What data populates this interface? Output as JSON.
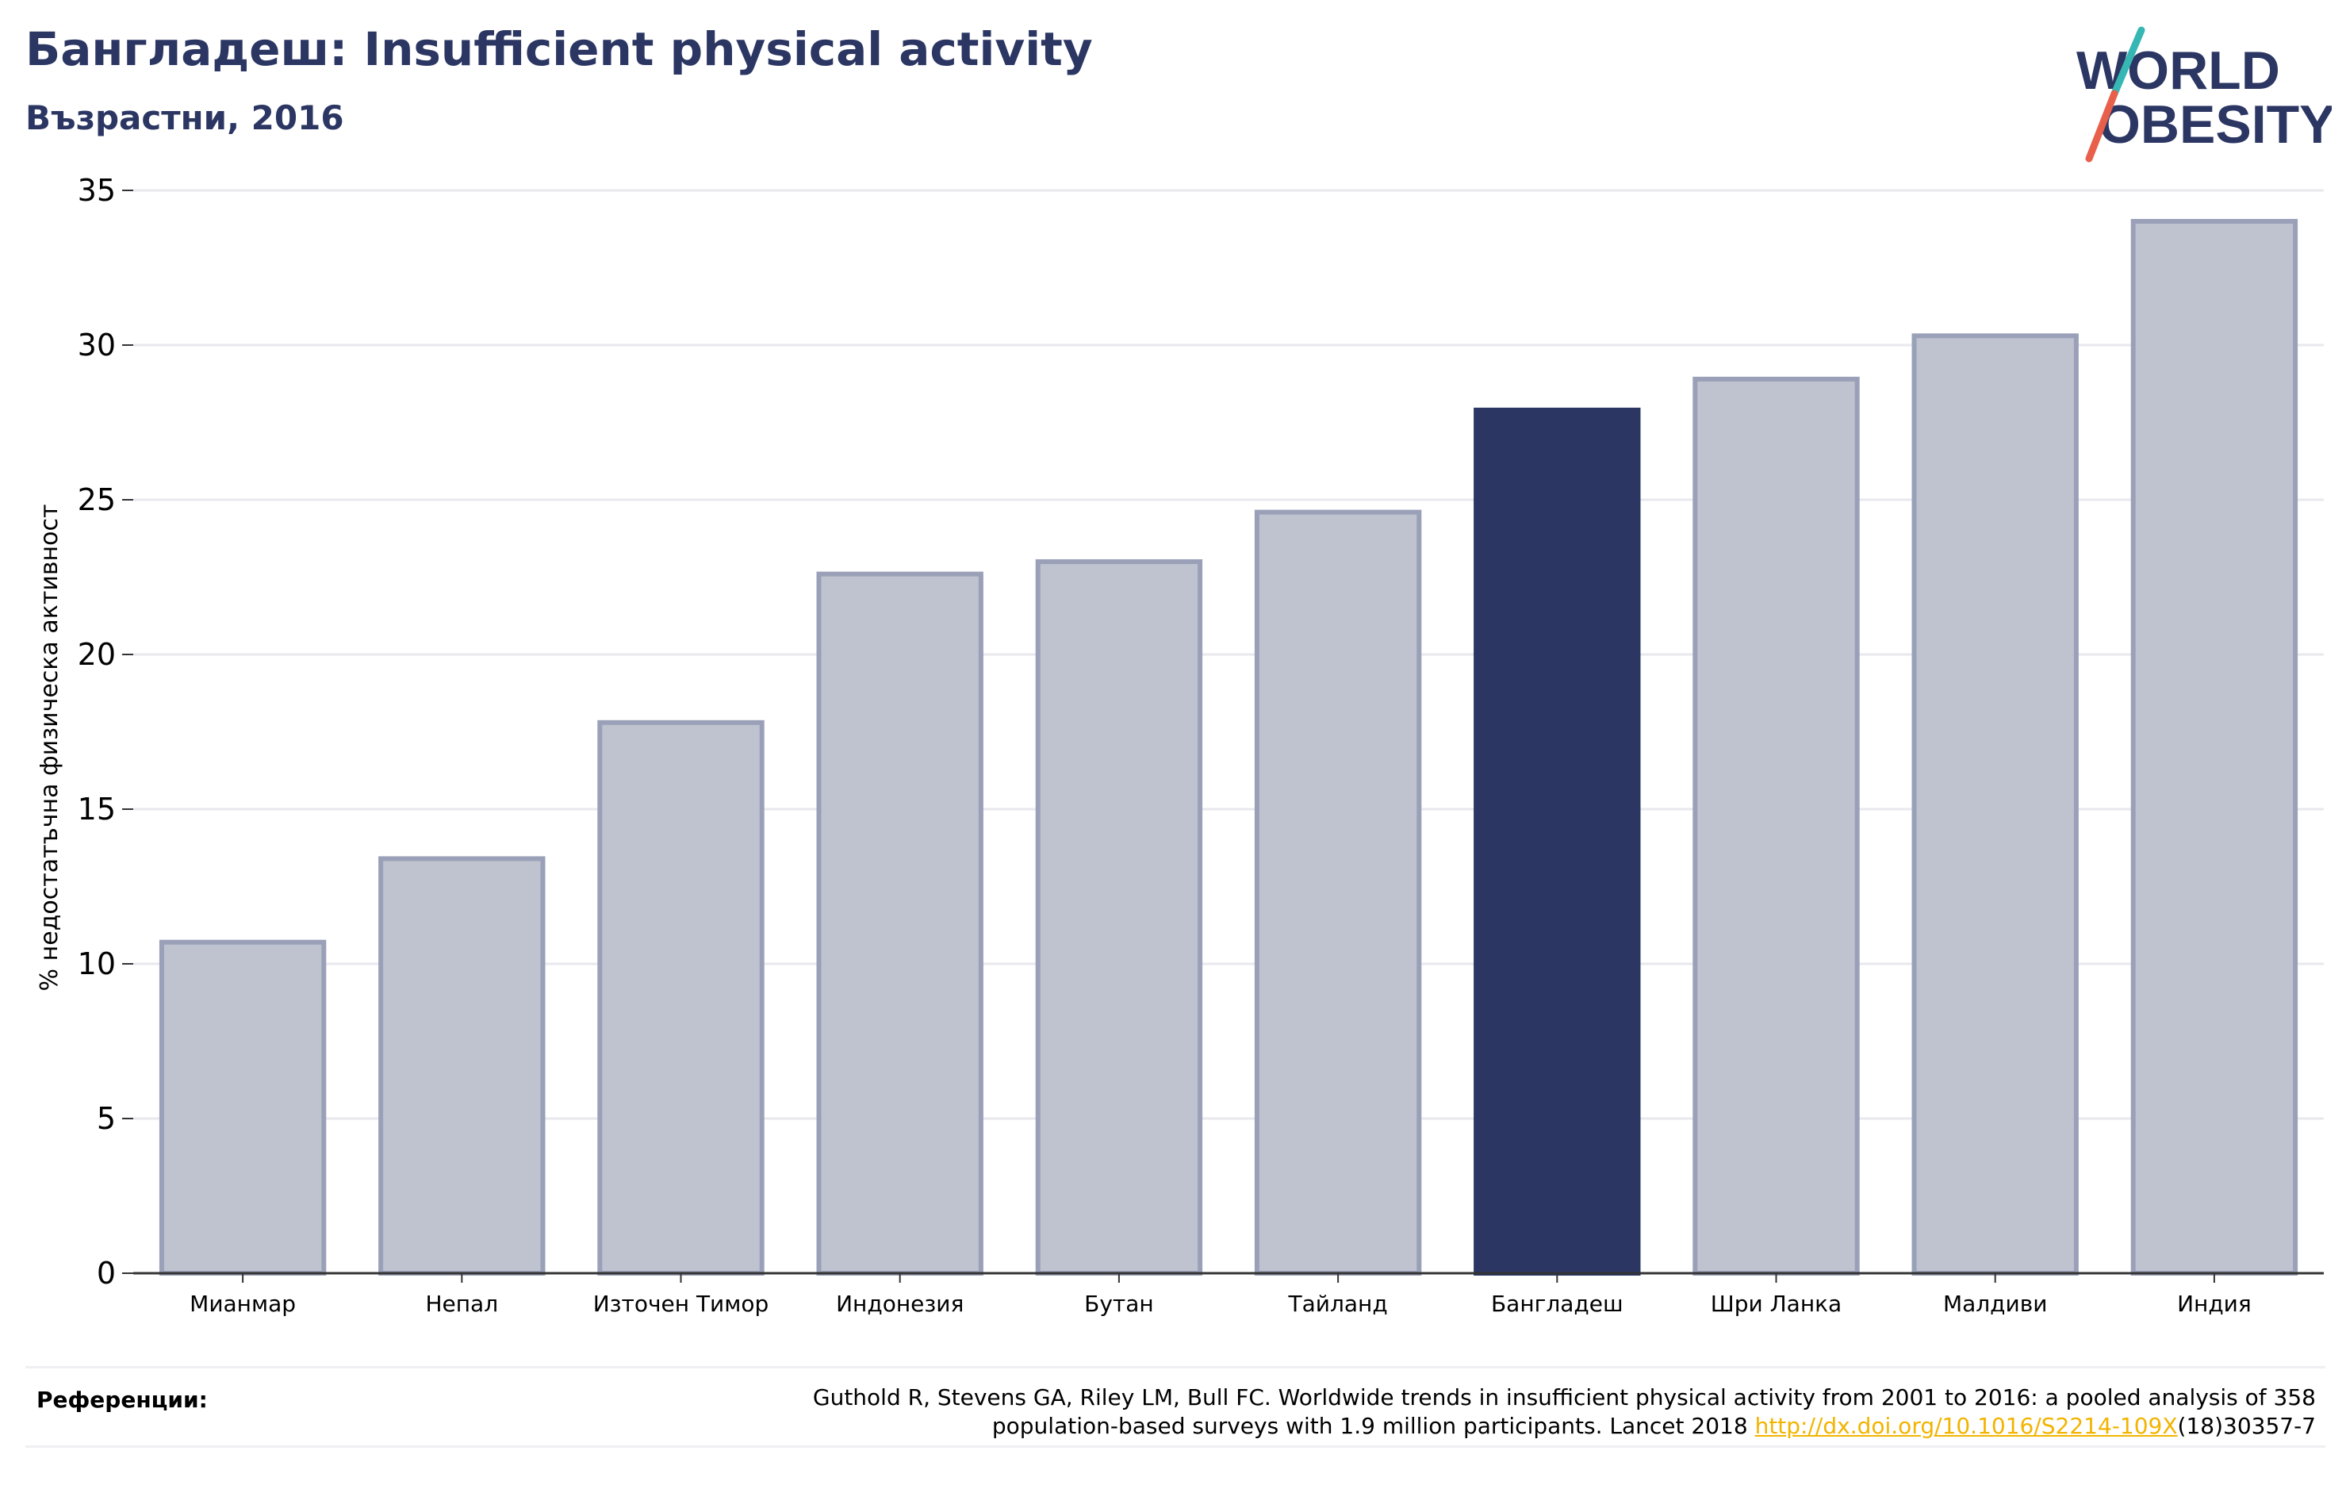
{
  "header": {
    "title": "Бангладеш: Insufficient physical activity",
    "subtitle": "Възрастни, 2016"
  },
  "logo": {
    "line1": "WORLD",
    "line2": "OBESITY"
  },
  "colors": {
    "highlight": "#2b3663",
    "bar_fill": "#bfc2cf",
    "bar_edge": "#9aa0b8",
    "grid": "#e8e8ee",
    "logo_text": "#2b3663",
    "logo_slash_teal": "#36b7b4",
    "logo_slash_red": "#e8604c",
    "link": "#f2b400"
  },
  "chart_data": {
    "type": "bar",
    "categories": [
      "Мианмар",
      "Непал",
      "Източен Тимор",
      "Индонезия",
      "Бутан",
      "Тайланд",
      "Бангладеш",
      "Шри Ланка",
      "Малдиви",
      "Индия"
    ],
    "values": [
      10.7,
      13.4,
      17.8,
      22.6,
      23.0,
      24.6,
      27.9,
      28.9,
      30.3,
      34.0
    ],
    "highlight_category": "Бангладеш",
    "ylabel": "% недостатъчна физическа активност",
    "xlabel": "",
    "ylim": [
      0,
      35
    ],
    "yticks": [
      0,
      5,
      10,
      15,
      20,
      25,
      30,
      35
    ],
    "grid": true
  },
  "references": {
    "label": "Референции:",
    "text_part1": "Guthold R, Stevens GA, Riley LM, Bull FC. Worldwide trends in insufficient physical activity from 2001 to 2016: a pooled analysis of 358",
    "text_part2": "population-based surveys with 1.9 million participants. Lancet 2018 ",
    "link_text": "http://dx.doi.org/10.1016/S2214-109X",
    "text_part3": "(18)30357-7"
  }
}
